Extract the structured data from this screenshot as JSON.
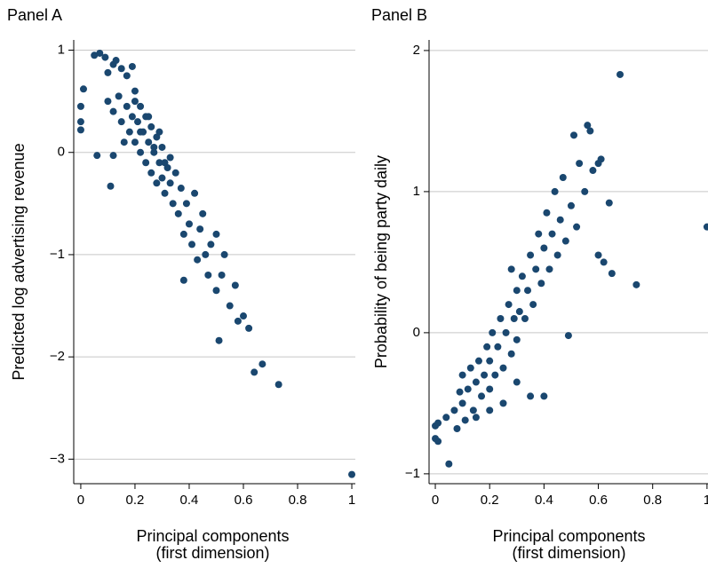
{
  "chart_data": [
    {
      "type": "scatter",
      "title": "Panel A",
      "ylabel": "Predicted log advertising revenue",
      "xlabel": "Principal components",
      "xlabel_note": "(first dimension)",
      "color": "#1a476f",
      "grid": true,
      "xlim": [
        -0.026,
        1.013
      ],
      "ylim": [
        -3.24,
        1.1
      ],
      "xticks": [
        0,
        0.2,
        0.4,
        0.6,
        0.8,
        1
      ],
      "yticks": [
        1,
        0,
        {
          "value": -1,
          "label": "−1"
        },
        {
          "value": -2,
          "label": "−2"
        },
        {
          "value": -3,
          "label": "−3"
        }
      ],
      "x": [
        0,
        0,
        0.01,
        0,
        0.05,
        0.07,
        0.09,
        0.1,
        0.12,
        0.13,
        0.15,
        0.17,
        0.19,
        0.06,
        0.11,
        0.12,
        0.1,
        0.12,
        0.14,
        0.15,
        0.16,
        0.17,
        0.18,
        0.19,
        0.2,
        0.2,
        0.21,
        0.22,
        0.22,
        0.23,
        0.24,
        0.24,
        0.25,
        0.26,
        0.26,
        0.27,
        0.28,
        0.28,
        0.29,
        0.3,
        0.3,
        0.31,
        0.32,
        0.33,
        0.34,
        0.35,
        0.36,
        0.37,
        0.38,
        0.39,
        0.4,
        0.41,
        0.42,
        0.43,
        0.44,
        0.45,
        0.46,
        0.47,
        0.48,
        0.5,
        0.5,
        0.52,
        0.53,
        0.55,
        0.57,
        0.58,
        0.6,
        0.62,
        0.38,
        0.51,
        0.64,
        0.67,
        0.73,
        1,
        0.2,
        0.22,
        0.25,
        0.27,
        0.29,
        0.31,
        0.33
      ],
      "y": [
        0.45,
        0.3,
        0.62,
        0.22,
        0.95,
        0.97,
        0.93,
        0.78,
        0.86,
        0.9,
        0.82,
        0.75,
        0.84,
        -0.03,
        -0.33,
        -0.03,
        0.5,
        0.4,
        0.55,
        0.3,
        0.1,
        0.45,
        0.2,
        0.35,
        0.6,
        0.1,
        0.3,
        0,
        0.45,
        0.2,
        -0.1,
        0.35,
        0.1,
        -0.2,
        0.25,
        0,
        -0.3,
        0.15,
        -0.1,
        -0.25,
        0.05,
        -0.4,
        -0.15,
        -0.3,
        -0.5,
        -0.2,
        -0.6,
        -0.35,
        -0.8,
        -0.5,
        -0.7,
        -0.9,
        -0.4,
        -1.05,
        -0.75,
        -0.6,
        -1,
        -1.2,
        -0.9,
        -1.35,
        -0.8,
        -1.2,
        -1,
        -1.5,
        -1.3,
        -1.65,
        -1.6,
        -1.72,
        -1.25,
        -1.84,
        -2.15,
        -2.07,
        -2.27,
        -3.15,
        0.5,
        0.2,
        0.35,
        0.05,
        0.2,
        -0.1,
        -0.05
      ]
    },
    {
      "type": "scatter",
      "title": "Panel B",
      "ylabel": "Probability of being party daily",
      "xlabel": "Principal components",
      "xlabel_note": "(first dimension)",
      "color": "#1a476f",
      "grid": true,
      "xlim": [
        -0.023,
        1.02
      ],
      "ylim": [
        -1.07,
        2.075
      ],
      "xticks": [
        0,
        0.2,
        0.4,
        0.6,
        0.8,
        1
      ],
      "yticks": [
        2,
        1,
        0,
        {
          "value": -1,
          "label": "−1"
        }
      ],
      "x": [
        0,
        0,
        0.01,
        0.01,
        0.05,
        0.04,
        0.07,
        0.08,
        0.09,
        0.1,
        0.1,
        0.11,
        0.12,
        0.13,
        0.14,
        0.15,
        0.16,
        0.17,
        0.18,
        0.19,
        0.2,
        0.2,
        0.21,
        0.22,
        0.23,
        0.24,
        0.25,
        0.26,
        0.27,
        0.28,
        0.29,
        0.3,
        0.3,
        0.31,
        0.32,
        0.33,
        0.34,
        0.35,
        0.36,
        0.37,
        0.38,
        0.39,
        0.4,
        0.41,
        0.42,
        0.43,
        0.44,
        0.45,
        0.46,
        0.47,
        0.48,
        0.5,
        0.51,
        0.52,
        0.53,
        0.55,
        0.56,
        0.57,
        0.58,
        0.6,
        0.61,
        0.6,
        0.62,
        0.64,
        0.65,
        0.68,
        0.74,
        1,
        0.49,
        0.4,
        0.35,
        0.25,
        0.2,
        0.3,
        0.15,
        0.28
      ],
      "y": [
        -0.66,
        -0.75,
        -0.64,
        -0.77,
        -0.93,
        -0.6,
        -0.55,
        -0.68,
        -0.42,
        -0.5,
        -0.3,
        -0.62,
        -0.4,
        -0.25,
        -0.55,
        -0.35,
        -0.2,
        -0.45,
        -0.3,
        -0.1,
        -0.4,
        -0.2,
        0,
        -0.3,
        -0.1,
        0.1,
        -0.25,
        0,
        0.2,
        -0.15,
        0.1,
        0.3,
        -0.05,
        0.15,
        0.4,
        0.1,
        0.3,
        0.55,
        0.2,
        0.45,
        0.7,
        0.35,
        0.6,
        0.85,
        0.45,
        0.7,
        1,
        0.55,
        0.8,
        1.1,
        0.65,
        0.9,
        1.4,
        0.75,
        1.2,
        1,
        1.47,
        1.43,
        1.15,
        1.2,
        1.23,
        0.55,
        0.5,
        0.92,
        0.42,
        1.83,
        0.34,
        0.75,
        -0.02,
        -0.45,
        -0.45,
        -0.5,
        -0.55,
        -0.35,
        -0.6,
        0.45
      ]
    }
  ]
}
